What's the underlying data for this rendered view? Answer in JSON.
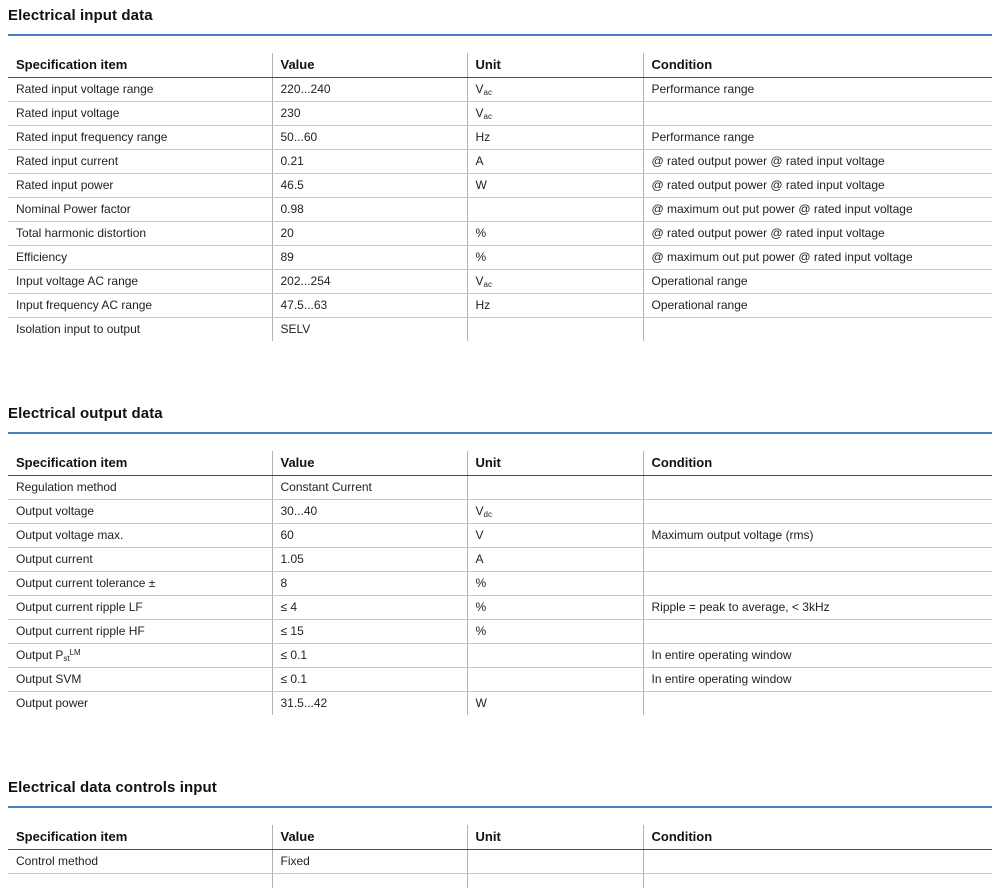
{
  "page": {
    "accent_rule_color": "#4a80c4"
  },
  "sections": [
    {
      "title": "Electrical input data",
      "columns": [
        "Specification item",
        "Value",
        "Unit",
        "Condition"
      ],
      "rows": [
        {
          "item": "Rated input voltage range",
          "value": "220...240",
          "unit": "V",
          "unit_sub": "ac",
          "condition": "Performance range"
        },
        {
          "item": "Rated input voltage",
          "value": "230",
          "unit": "V",
          "unit_sub": "ac",
          "condition": ""
        },
        {
          "item": "Rated input frequency range",
          "value": "50...60",
          "unit": "Hz",
          "condition": "Performance range"
        },
        {
          "item": "Rated input current",
          "value": "0.21",
          "unit": "A",
          "condition": "@ rated output power @ rated input voltage"
        },
        {
          "item": "Rated input power",
          "value": "46.5",
          "unit": "W",
          "condition": "@ rated output power @ rated input voltage"
        },
        {
          "item": "Nominal Power factor",
          "value": "0.98",
          "unit": "",
          "condition": "@ maximum out put power @ rated input voltage"
        },
        {
          "item": "Total harmonic distortion",
          "value": "20",
          "unit": "%",
          "condition": "@ rated output power @ rated input voltage"
        },
        {
          "item": "Efficiency",
          "value": "89",
          "unit": "%",
          "condition": "@ maximum out put power @ rated input voltage"
        },
        {
          "item": "Input voltage AC range",
          "value": "202...254",
          "unit": "V",
          "unit_sub": "ac",
          "condition": "Operational range"
        },
        {
          "item": "Input frequency AC range",
          "value": "47.5...63",
          "unit": "Hz",
          "condition": "Operational range"
        },
        {
          "item": "Isolation input to output",
          "value": "SELV",
          "unit": "",
          "condition": ""
        }
      ]
    },
    {
      "title": "Electrical output data",
      "columns": [
        "Specification item",
        "Value",
        "Unit",
        "Condition"
      ],
      "rows": [
        {
          "item": "Regulation method",
          "value": "Constant Current",
          "unit": "",
          "condition": ""
        },
        {
          "item": "Output voltage",
          "value": "30...40",
          "unit": "V",
          "unit_sub": "dc",
          "condition": ""
        },
        {
          "item": "Output voltage max.",
          "value": "60",
          "unit": "V",
          "condition": "Maximum output voltage (rms)"
        },
        {
          "item": "Output current",
          "value": "1.05",
          "unit": "A",
          "condition": ""
        },
        {
          "item": "Output current tolerance ±",
          "value": "8",
          "unit": "%",
          "condition": ""
        },
        {
          "item": "Output current ripple LF",
          "value": "≤ 4",
          "unit": "%",
          "condition": "Ripple = peak to average, < 3kHz"
        },
        {
          "item": "Output current ripple HF",
          "value": "≤ 15",
          "unit": "%",
          "condition": ""
        },
        {
          "item": "Output P",
          "item_sub": "st",
          "item_sup": "LM",
          "value": "≤ 0.1",
          "unit": "",
          "condition": "In entire operating window"
        },
        {
          "item": "Output SVM",
          "value": "≤ 0.1",
          "unit": "",
          "condition": "In entire operating window"
        },
        {
          "item": "Output power",
          "value": "31.5...42",
          "unit": "W",
          "condition": ""
        }
      ]
    },
    {
      "title": "Electrical data controls input",
      "columns": [
        "Specification item",
        "Value",
        "Unit",
        "Condition"
      ],
      "rows": [
        {
          "item": "Control method",
          "value": "Fixed",
          "unit": "",
          "condition": ""
        },
        {
          "item": "",
          "value": "",
          "unit": "",
          "condition": ""
        }
      ]
    }
  ]
}
